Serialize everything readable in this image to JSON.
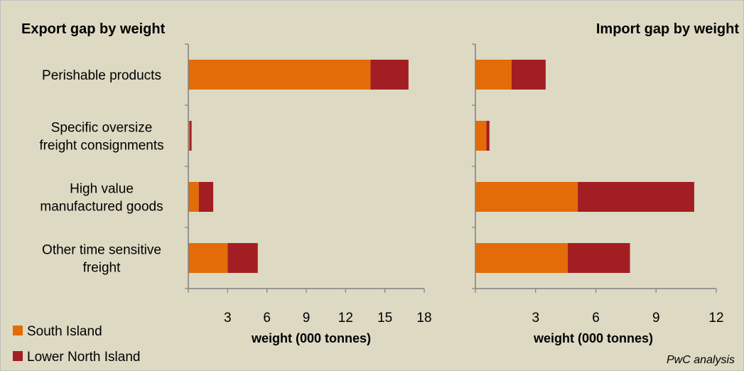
{
  "chart_data": [
    {
      "type": "bar",
      "orientation": "horizontal",
      "stacked": true,
      "title": "Export gap by weight",
      "xlabel": "weight (000 tonnes)",
      "xlim": [
        0,
        18
      ],
      "xticks": [
        3,
        6,
        9,
        12,
        15,
        18
      ],
      "grid": false,
      "categories": [
        "Perishable products",
        "Specific oversize freight consignments",
        "High value manufactured goods",
        "Other time sensitive freight"
      ],
      "category_lines": [
        [
          "Perishable products"
        ],
        [
          "Specific oversize",
          "freight consignments"
        ],
        [
          "High value",
          "manufactured goods"
        ],
        [
          "Other time sensitive",
          "freight"
        ]
      ],
      "series": [
        {
          "name": "South Island",
          "values": [
            13.9,
            0.1,
            0.8,
            3.0
          ]
        },
        {
          "name": "Lower North Island",
          "values": [
            2.9,
            0.15,
            1.1,
            2.3
          ]
        }
      ]
    },
    {
      "type": "bar",
      "orientation": "horizontal",
      "stacked": true,
      "title": "Import gap by weight",
      "xlabel": "weight (000 tonnes)",
      "xlim": [
        0,
        12
      ],
      "xticks": [
        3,
        6,
        9,
        12
      ],
      "grid": false,
      "categories": [
        "Perishable products",
        "Specific oversize freight consignments",
        "High value manufactured goods",
        "Other time sensitive freight"
      ],
      "series": [
        {
          "name": "South Island",
          "values": [
            1.8,
            0.55,
            5.1,
            4.6
          ]
        },
        {
          "name": "Lower North Island",
          "values": [
            1.7,
            0.15,
            5.8,
            3.1
          ]
        }
      ]
    }
  ],
  "legend": {
    "placement": "bottom-left",
    "items": [
      {
        "label": "South Island",
        "color": "#e36c09"
      },
      {
        "label": "Lower North Island",
        "color": "#a31e22"
      }
    ]
  },
  "source_note": "PwC analysis",
  "colors": {
    "background": "#ddd9c3",
    "south_island": "#e36c09",
    "lower_north_island": "#a31e22",
    "axis": "#808080"
  }
}
